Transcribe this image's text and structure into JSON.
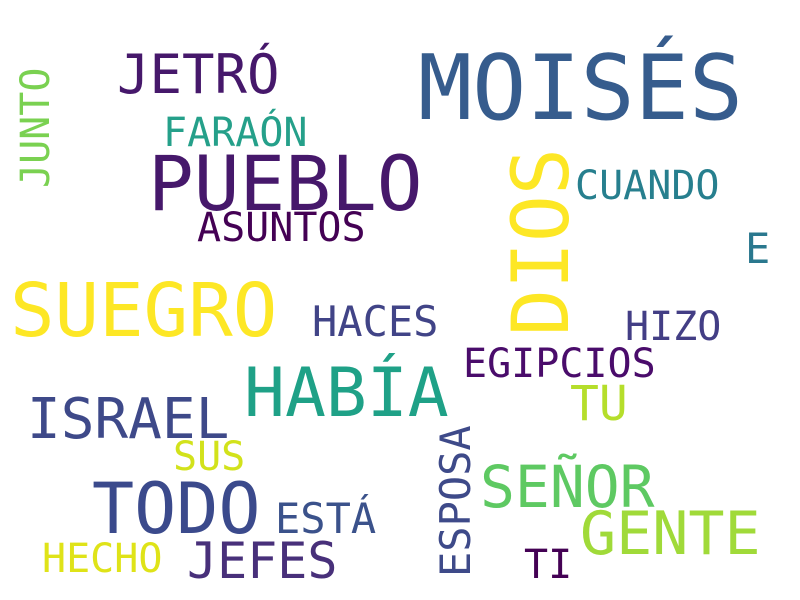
{
  "words": [
    {
      "key": "moises",
      "text": "MOISÉS",
      "color": "#365c8d"
    },
    {
      "key": "pueblo",
      "text": "PUEBLO",
      "color": "#46186b"
    },
    {
      "key": "dios",
      "text": "DIOS",
      "color": "#fde725"
    },
    {
      "key": "suegro",
      "text": "SUEGRO",
      "color": "#fde725"
    },
    {
      "key": "habia",
      "text": "HABÍA",
      "color": "#1fa187"
    },
    {
      "key": "todo",
      "text": "TODO",
      "color": "#3b4a8c"
    },
    {
      "key": "jetro",
      "text": "JETRÓ",
      "color": "#46186b"
    },
    {
      "key": "gente",
      "text": "GENTE",
      "color": "#a0da39"
    },
    {
      "key": "senor",
      "text": "SEÑOR",
      "color": "#5ec962"
    },
    {
      "key": "israel",
      "text": "ISRAEL",
      "color": "#3e4989"
    },
    {
      "key": "jefes",
      "text": "JEFES",
      "color": "#48307a"
    },
    {
      "key": "faraon",
      "text": "FARAÓN",
      "color": "#25a08a"
    },
    {
      "key": "asuntos",
      "text": "ASUNTOS",
      "color": "#440154"
    },
    {
      "key": "cuando",
      "text": "CUANDO",
      "color": "#277f8e"
    },
    {
      "key": "haces",
      "text": "HACES",
      "color": "#414487"
    },
    {
      "key": "hizo",
      "text": "HIZO",
      "color": "#433e85"
    },
    {
      "key": "egipcios",
      "text": "EGIPCIOS",
      "color": "#4a0c6b"
    },
    {
      "key": "tu",
      "text": "TU",
      "color": "#b5de2b"
    },
    {
      "key": "sus",
      "text": "SUS",
      "color": "#d2e21b"
    },
    {
      "key": "esta",
      "text": "ESTÁ",
      "color": "#3b528b"
    },
    {
      "key": "hecho",
      "text": "HECHO",
      "color": "#dfe318"
    },
    {
      "key": "ti",
      "text": "TI",
      "color": "#440154"
    },
    {
      "key": "e",
      "text": "E",
      "color": "#2a788e"
    },
    {
      "key": "junto",
      "text": "JUNTO",
      "color": "#7ad151"
    },
    {
      "key": "esposa",
      "text": "ESPOSA",
      "color": "#3e4a89"
    }
  ]
}
